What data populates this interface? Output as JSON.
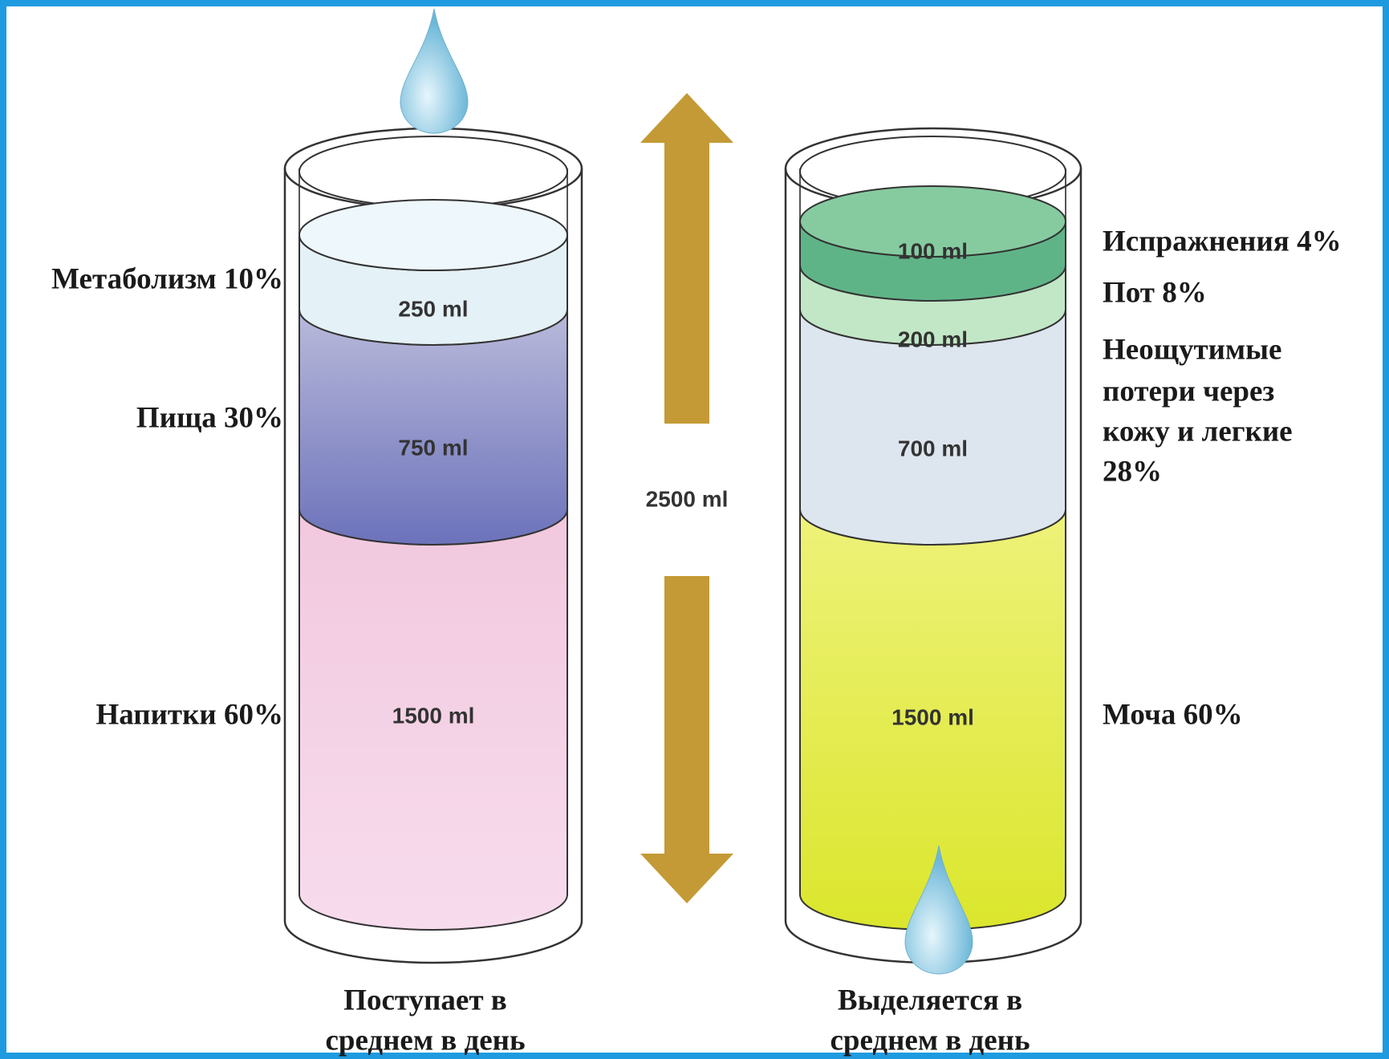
{
  "intake": {
    "caption": [
      "Поступает в",
      "среднем в день"
    ],
    "layers": [
      {
        "amount": "250 ml",
        "label": "Метаболизм 10%"
      },
      {
        "amount": "750 ml",
        "label": "Пища 30%"
      },
      {
        "amount": "1500 ml",
        "label": "Напитки 60%"
      }
    ]
  },
  "total": "2500 ml",
  "output": {
    "caption": [
      "Выделяется в",
      "среднем в день"
    ],
    "layers": [
      {
        "amount": "100 ml",
        "label": [
          "Испражнения 4%"
        ]
      },
      {
        "amount": "200 ml",
        "label": [
          "Пот 8%"
        ]
      },
      {
        "amount": "700 ml",
        "label": [
          "Неощутимые",
          "потери через",
          "кожу и легкие",
          "28%"
        ]
      },
      {
        "amount": "1500 ml",
        "label": [
          "Моча 60%"
        ]
      }
    ]
  }
}
